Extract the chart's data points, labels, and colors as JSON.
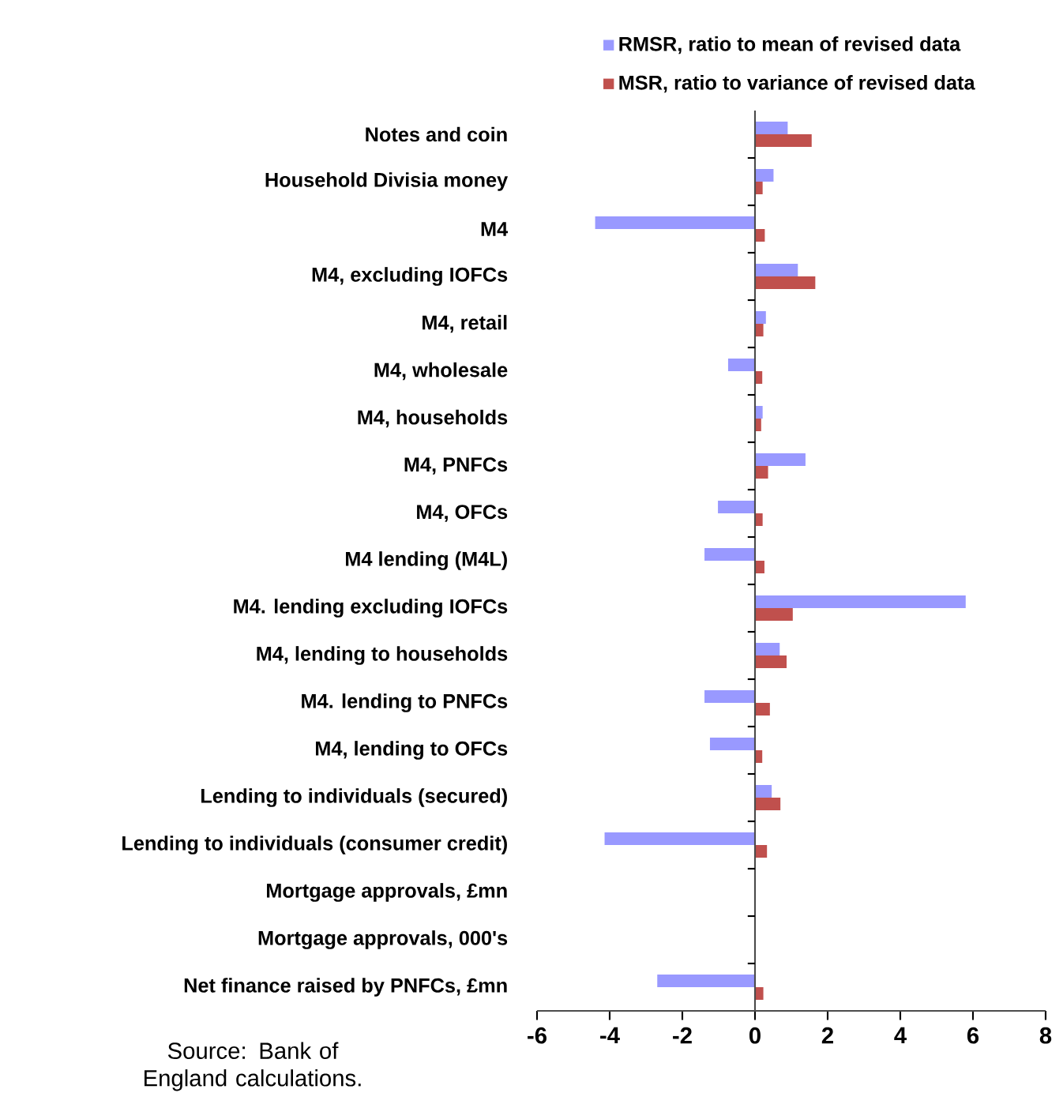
{
  "chart_data": {
    "type": "bar",
    "orientation": "horizontal",
    "categories": [
      "Notes and coin",
      "Household Divisia money",
      "M4",
      "M4, excluding IOFCs",
      "M4, retail",
      "M4, wholesale",
      "M4, households",
      "M4, PNFCs",
      "M4, OFCs",
      "M4 lending (M4L)",
      "M4. lending excluding IOFCs",
      "M4, lending to households",
      "M4. lending to PNFCs",
      "M4, lending to OFCs",
      "Lending to individuals (secured)",
      "Lending to individuals (consumer credit)",
      "Mortgage approvals, £mn",
      "Mortgage approvals, 000's",
      "Net finance raised by PNFCs, £mn"
    ],
    "series": [
      {
        "name": "RMSR, ratio to mean of revised data",
        "color": "#9999ff",
        "values": [
          0.9,
          0.51,
          -4.4,
          1.18,
          0.3,
          -0.74,
          0.21,
          1.39,
          -1.02,
          -1.39,
          5.8,
          0.68,
          -1.39,
          -1.24,
          0.46,
          -4.14,
          null,
          null,
          -2.69
        ]
      },
      {
        "name": "MSR, ratio to variance of revised data",
        "color": "#c0504d",
        "values": [
          1.56,
          0.21,
          0.27,
          1.66,
          0.23,
          0.2,
          0.17,
          0.36,
          0.21,
          0.26,
          1.04,
          0.87,
          0.41,
          0.2,
          0.7,
          0.33,
          null,
          null,
          0.23
        ]
      }
    ],
    "xlim": [
      -6,
      8
    ],
    "xticks": [
      -6,
      -4,
      -2,
      0,
      2,
      4,
      6,
      8
    ],
    "legend": "top",
    "annotations": [
      "Source:  Bank of England calculations."
    ]
  }
}
